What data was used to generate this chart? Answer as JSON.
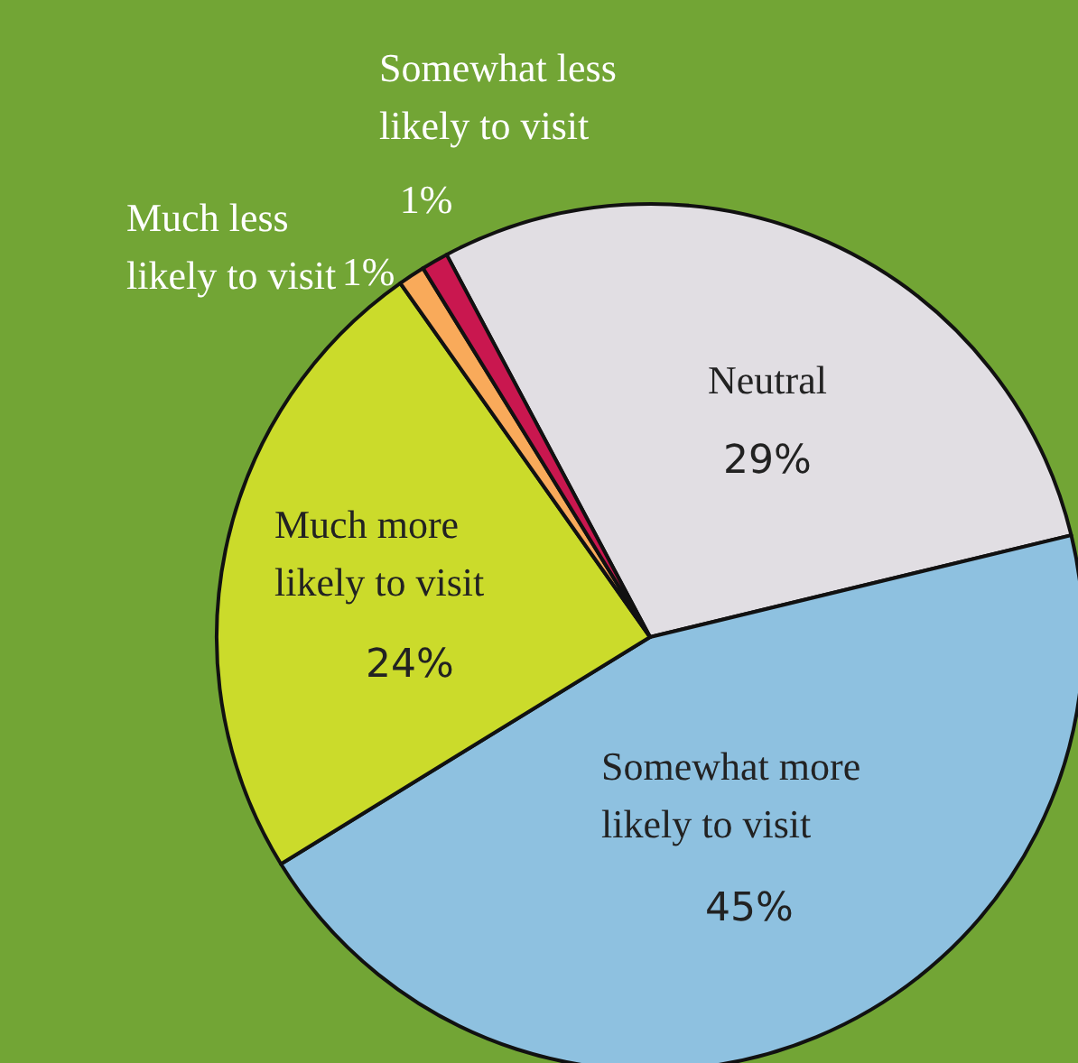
{
  "chart_data": {
    "type": "pie",
    "categories": [
      "Neutral",
      "Somewhat more likely to visit",
      "Much more likely to visit",
      "Much less likely to visit",
      "Somewhat less likely to visit"
    ],
    "values": [
      29,
      45,
      24,
      1,
      1
    ],
    "colors": [
      "#e1dee3",
      "#8ec1e0",
      "#cbdb2b",
      "#f9aa5a",
      "#c9174f"
    ],
    "value_labels": [
      "29%",
      "45%",
      "24%",
      "1%",
      "1%"
    ]
  }
}
